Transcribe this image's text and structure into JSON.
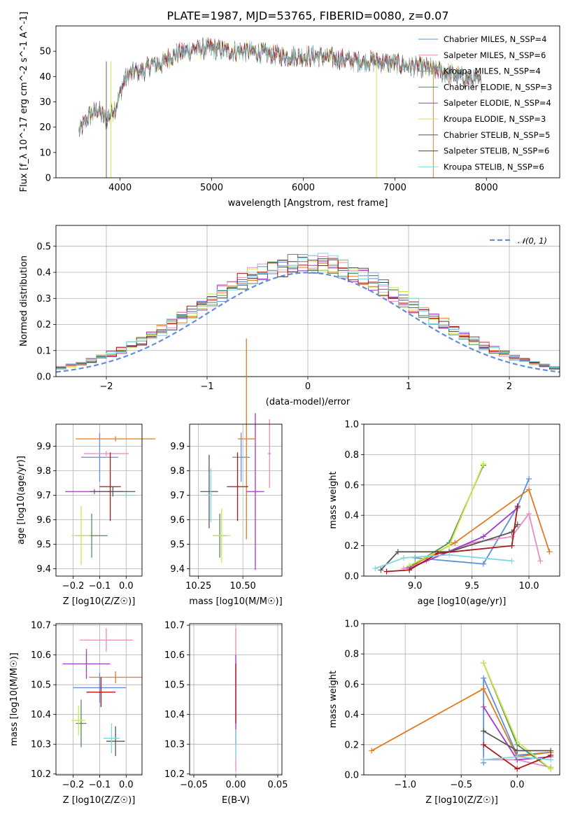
{
  "colors": {
    "chabrier_miles": "#5f8fdb",
    "salpeter_miles": "#e88ac4",
    "kroupa_miles": "#e07b20",
    "chabrier_elodie": "#5a8a5a",
    "salpeter_elodie": "#a03cc8",
    "kroupa_elodie": "#c9e84a",
    "chabrier_stelib": "#555555",
    "salpeter_stelib": "#b01515",
    "kroupa_stelib": "#7dd8e0",
    "gaussian": "#5f8fdb",
    "grid": "#b0b0b0"
  },
  "chart_data": [
    {
      "id": "spectrum",
      "type": "line",
      "title": "PLATE=1987, MJD=53765, FIBERID=0080, z=0.07",
      "xlabel": "wavelength [Angstrom, rest frame]",
      "ylabel": "Flux [f_λ 10^-17 erg cm^-2 s^-1 A^-1]",
      "xlim": [
        3300,
        8800
      ],
      "ylim": [
        0,
        60
      ],
      "xticks": [
        "4000",
        "5000",
        "6000",
        "7000",
        "8000"
      ],
      "yticks": [
        "0",
        "10",
        "20",
        "30",
        "40",
        "50"
      ],
      "legend_position": "upper right",
      "legend": [
        "Chabrier MILES, N_SSP=4",
        "Salpeter MILES, N_SSP=6",
        "Kroupa MILES, N_SSP=4",
        "Chabrier ELODIE, N_SSP=3",
        "Salpeter ELODIE, N_SSP=4",
        "Kroupa ELODIE, N_SSP=3",
        "Chabrier STELIB, N_SSP=5",
        "Salpeter STELIB, N_SSP=6",
        "Kroupa STELIB, N_SSP=6"
      ],
      "continuum": {
        "x": [
          3550,
          3650,
          3750,
          3850,
          3950,
          4050,
          4150,
          4250,
          4350,
          4450,
          4550,
          4700,
          4850,
          5000,
          5200,
          5400,
          5600,
          5800,
          6000,
          6200,
          6400,
          6600,
          6800,
          7000,
          7200,
          7400,
          7600,
          7800,
          7950
        ],
        "y": [
          18,
          24,
          27,
          23,
          28,
          39,
          42,
          42,
          45,
          45,
          48,
          50,
          51,
          51,
          50,
          50,
          49,
          48,
          48,
          48,
          47,
          46,
          46,
          45,
          44,
          43,
          41,
          39,
          38
        ]
      }
    },
    {
      "id": "residuals",
      "type": "histogram",
      "xlabel": "(data-model)/error",
      "ylabel": "Normed distribution",
      "xlim": [
        -2.5,
        2.5
      ],
      "ylim": [
        0,
        0.58
      ],
      "xticks": [
        "−2",
        "−1",
        "0",
        "1",
        "2"
      ],
      "yticks": [
        "0.0",
        "0.1",
        "0.2",
        "0.3",
        "0.4",
        "0.5"
      ],
      "legend": [
        "𝒩(0, 1)"
      ],
      "bin_width": 0.1,
      "gaussian_mean": 0,
      "gaussian_sigma": 1
    },
    {
      "id": "age_vs_z",
      "type": "errorbar",
      "xlabel": "Z [log10(Z/Z☉)]",
      "ylabel": "age [log10(age/yr)]",
      "xlim": [
        -0.265,
        0.06
      ],
      "ylim": [
        9.37,
        9.99
      ],
      "xticks": [
        "−0.2",
        "−0.1",
        "0.0"
      ],
      "yticks": [
        "9.4",
        "9.5",
        "9.6",
        "9.7",
        "9.8",
        "9.9"
      ],
      "points": [
        {
          "series": "chabrier_miles",
          "x": -0.1,
          "xerr": 0.07,
          "y": 9.855,
          "yerr": 0.1
        },
        {
          "series": "salpeter_miles",
          "x": -0.075,
          "xerr": 0.085,
          "y": 9.87,
          "yerr": 0.01
        },
        {
          "series": "kroupa_miles",
          "x": -0.04,
          "xerr": 0.15,
          "y": 9.93,
          "yerr": 0.01
        },
        {
          "series": "chabrier_elodie",
          "x": -0.13,
          "xerr": 0.06,
          "y": 9.535,
          "yerr": 0.09
        },
        {
          "series": "salpeter_elodie",
          "x": -0.12,
          "xerr": 0.11,
          "y": 9.715,
          "yerr": 0.01
        },
        {
          "series": "kroupa_elodie",
          "x": -0.17,
          "xerr": 0.035,
          "y": 9.535,
          "yerr": 0.12
        },
        {
          "series": "chabrier_stelib",
          "x": -0.05,
          "xerr": 0.085,
          "y": 9.715,
          "yerr": 0.02
        },
        {
          "series": "salpeter_stelib",
          "x": -0.06,
          "xerr": 0.04,
          "y": 9.735,
          "yerr": 0.14
        },
        {
          "series": "kroupa_stelib",
          "x": 0.0,
          "xerr": 0.04,
          "y": 9.7,
          "yerr": 0.01
        }
      ]
    },
    {
      "id": "age_vs_mass",
      "type": "errorbar",
      "xlabel": "mass [log10(M/M☉)]",
      "ylabel": "",
      "xlim": [
        10.2,
        10.72
      ],
      "ylim": [
        9.37,
        9.99
      ],
      "xticks": [
        "10.25",
        "10.50"
      ],
      "yticks": [
        "9.4",
        "9.5",
        "9.6",
        "9.7",
        "9.8",
        "9.9"
      ],
      "points": [
        {
          "series": "chabrier_miles",
          "x": 10.49,
          "xerr": 0.05,
          "y": 9.855,
          "yerr": 0.1
        },
        {
          "series": "salpeter_miles",
          "x": 10.65,
          "xerr": 0.01,
          "y": 9.87,
          "yerr": 0.14
        },
        {
          "series": "kroupa_miles",
          "x": 10.52,
          "xerr": 0.05,
          "y": 9.93,
          "yerr": 0.41
        },
        {
          "series": "chabrier_elodie",
          "x": 10.37,
          "xerr": 0.04,
          "y": 9.535,
          "yerr": 0.09
        },
        {
          "series": "salpeter_elodie",
          "x": 10.57,
          "xerr": 0.05,
          "y": 9.715,
          "yerr": 0.32
        },
        {
          "series": "kroupa_elodie",
          "x": 10.38,
          "xerr": 0.05,
          "y": 9.535,
          "yerr": 0.11
        },
        {
          "series": "chabrier_stelib",
          "x": 10.31,
          "xerr": 0.05,
          "y": 9.715,
          "yerr": 0.15
        },
        {
          "series": "salpeter_stelib",
          "x": 10.47,
          "xerr": 0.06,
          "y": 9.735,
          "yerr": 0.14
        },
        {
          "series": "kroupa_stelib",
          "x": 10.32,
          "xerr": 0.04,
          "y": 9.7,
          "yerr": 0.11
        }
      ]
    },
    {
      "id": "massweight_vs_age",
      "type": "line",
      "xlabel": "age [log10(age/yr)]",
      "ylabel": "mass weight",
      "xlim": [
        8.55,
        10.27
      ],
      "ylim": [
        0,
        1.0
      ],
      "xticks": [
        "9.0",
        "9.5",
        "10.0"
      ],
      "yticks": [
        "0.0",
        "0.2",
        "0.4",
        "0.6",
        "0.8",
        "1.0"
      ],
      "series": [
        {
          "key": "chabrier_miles",
          "x": [
            9.0,
            9.6,
            9.9,
            10.0
          ],
          "y": [
            0.12,
            0.08,
            0.46,
            0.64
          ]
        },
        {
          "key": "salpeter_miles",
          "x": [
            8.9,
            9.1,
            9.5,
            9.85,
            10.0,
            10.1
          ],
          "y": [
            0.05,
            0.1,
            0.22,
            0.26,
            0.41,
            0.1
          ]
        },
        {
          "key": "kroupa_miles",
          "x": [
            9.0,
            9.35,
            10.0,
            10.18
          ],
          "y": [
            0.08,
            0.22,
            0.57,
            0.16
          ]
        },
        {
          "key": "chabrier_elodie",
          "x": [
            8.95,
            9.3,
            9.6
          ],
          "y": [
            0.06,
            0.22,
            0.73
          ]
        },
        {
          "key": "salpeter_elodie",
          "x": [
            8.95,
            9.6,
            9.9
          ],
          "y": [
            0.05,
            0.26,
            0.45
          ]
        },
        {
          "key": "kroupa_elodie",
          "x": [
            8.95,
            9.3,
            9.6
          ],
          "y": [
            0.07,
            0.2,
            0.74
          ]
        },
        {
          "key": "chabrier_stelib",
          "x": [
            8.7,
            8.85,
            9.3,
            9.85,
            9.9
          ],
          "y": [
            0.04,
            0.16,
            0.16,
            0.29,
            0.34
          ]
        },
        {
          "key": "salpeter_stelib",
          "x": [
            8.75,
            8.95,
            9.2,
            9.85,
            9.9
          ],
          "y": [
            0.03,
            0.04,
            0.15,
            0.2,
            0.46
          ]
        },
        {
          "key": "kroupa_stelib",
          "x": [
            8.65,
            8.9,
            9.3,
            9.85
          ],
          "y": [
            0.05,
            0.12,
            0.14,
            0.1
          ]
        }
      ]
    },
    {
      "id": "mass_vs_z",
      "type": "errorbar",
      "xlabel": "Z [log10(Z/Z☉)]",
      "ylabel": "mass [log10(M/M☉)]",
      "xlim": [
        -0.265,
        0.06
      ],
      "ylim": [
        10.197,
        10.705
      ],
      "xticks": [
        "−0.2",
        "−0.1",
        "0.0"
      ],
      "yticks": [
        "10.2",
        "10.3",
        "10.4",
        "10.5",
        "10.6",
        "10.7"
      ],
      "points": [
        {
          "series": "chabrier_miles",
          "x": -0.1,
          "xerr": 0.1,
          "y": 10.49,
          "yerr": 0.05
        },
        {
          "series": "salpeter_miles",
          "x": -0.075,
          "xerr": 0.1,
          "y": 10.65,
          "yerr": 0.04
        },
        {
          "series": "kroupa_miles",
          "x": -0.04,
          "xerr": 0.1,
          "y": 10.525,
          "yerr": 0.02
        },
        {
          "series": "chabrier_elodie",
          "x": -0.17,
          "xerr": 0.02,
          "y": 10.37,
          "yerr": 0.08
        },
        {
          "series": "salpeter_elodie",
          "x": -0.15,
          "xerr": 0.09,
          "y": 10.57,
          "yerr": 0.05
        },
        {
          "series": "kroupa_elodie",
          "x": -0.18,
          "xerr": 0.025,
          "y": 10.38,
          "yerr": 0.05
        },
        {
          "series": "chabrier_stelib",
          "x": -0.04,
          "xerr": 0.035,
          "y": 10.31,
          "yerr": 0.05
        },
        {
          "series": "salpeter_stelib",
          "x": -0.095,
          "xerr": 0.055,
          "y": 10.475,
          "yerr": 0.05
        },
        {
          "series": "kroupa_stelib",
          "x": -0.055,
          "xerr": 0.03,
          "y": 10.32,
          "yerr": 0.05
        }
      ]
    },
    {
      "id": "mass_vs_ebv",
      "type": "errorbar",
      "xlabel": "E(B-V)",
      "ylabel": "",
      "xlim": [
        -0.055,
        0.055
      ],
      "ylim": [
        10.197,
        10.705
      ],
      "xticks": [
        "−0.05",
        "0.00",
        "0.05"
      ],
      "yticks": [
        "10.2",
        "10.3",
        "10.4",
        "10.5",
        "10.6",
        "10.7"
      ],
      "points": [
        {
          "series": "salpeter_miles",
          "x": 0.0,
          "xerr": 0,
          "y": 10.45,
          "yerr": 0.24
        },
        {
          "series": "salpeter_elodie",
          "x": 0.0,
          "xerr": 0,
          "y": 10.45,
          "yerr": 0.15
        },
        {
          "series": "salpeter_stelib",
          "x": 0.0,
          "xerr": 0,
          "y": 10.47,
          "yerr": 0.1
        },
        {
          "series": "kroupa_stelib",
          "x": 0.0,
          "xerr": 0,
          "y": 10.3,
          "yerr": 0.05
        }
      ]
    },
    {
      "id": "massweight_vs_z",
      "type": "line",
      "xlabel": "Z [log10(Z/Z☉)]",
      "ylabel": "mass weight",
      "xlim": [
        -1.37,
        0.38
      ],
      "ylim": [
        0,
        1.0
      ],
      "xticks": [
        "−1.0",
        "−0.5",
        "0.0"
      ],
      "yticks": [
        "0.0",
        "0.2",
        "0.4",
        "0.6",
        "0.8",
        "1.0"
      ],
      "series": [
        {
          "key": "chabrier_miles",
          "x": [
            -0.3,
            -0.3,
            0.0,
            0.3
          ],
          "y": [
            0.08,
            0.64,
            0.13,
            0.15
          ]
        },
        {
          "key": "salpeter_miles",
          "x": [
            -0.3,
            0.0,
            0.3
          ],
          "y": [
            0.1,
            0.1,
            0.05
          ]
        },
        {
          "key": "kroupa_miles",
          "x": [
            -1.3,
            -0.3,
            0.0,
            0.3
          ],
          "y": [
            0.16,
            0.57,
            0.12,
            0.15
          ]
        },
        {
          "key": "chabrier_elodie",
          "x": [
            -0.3,
            0.0,
            0.3
          ],
          "y": [
            0.74,
            0.2,
            0.04
          ]
        },
        {
          "key": "salpeter_elodie",
          "x": [
            -0.3,
            0.0,
            0.3
          ],
          "y": [
            0.45,
            0.1,
            0.12
          ]
        },
        {
          "key": "kroupa_elodie",
          "x": [
            -0.3,
            0.0,
            0.3
          ],
          "y": [
            0.74,
            0.22,
            0.04
          ]
        },
        {
          "key": "chabrier_stelib",
          "x": [
            -0.3,
            0.0,
            0.3
          ],
          "y": [
            0.29,
            0.16,
            0.16
          ]
        },
        {
          "key": "salpeter_stelib",
          "x": [
            -0.3,
            0.0,
            0.3
          ],
          "y": [
            0.2,
            0.04,
            0.13
          ]
        },
        {
          "key": "kroupa_stelib",
          "x": [
            -0.3,
            0.0,
            0.3
          ],
          "y": [
            0.1,
            0.12,
            0.1
          ]
        }
      ]
    }
  ]
}
